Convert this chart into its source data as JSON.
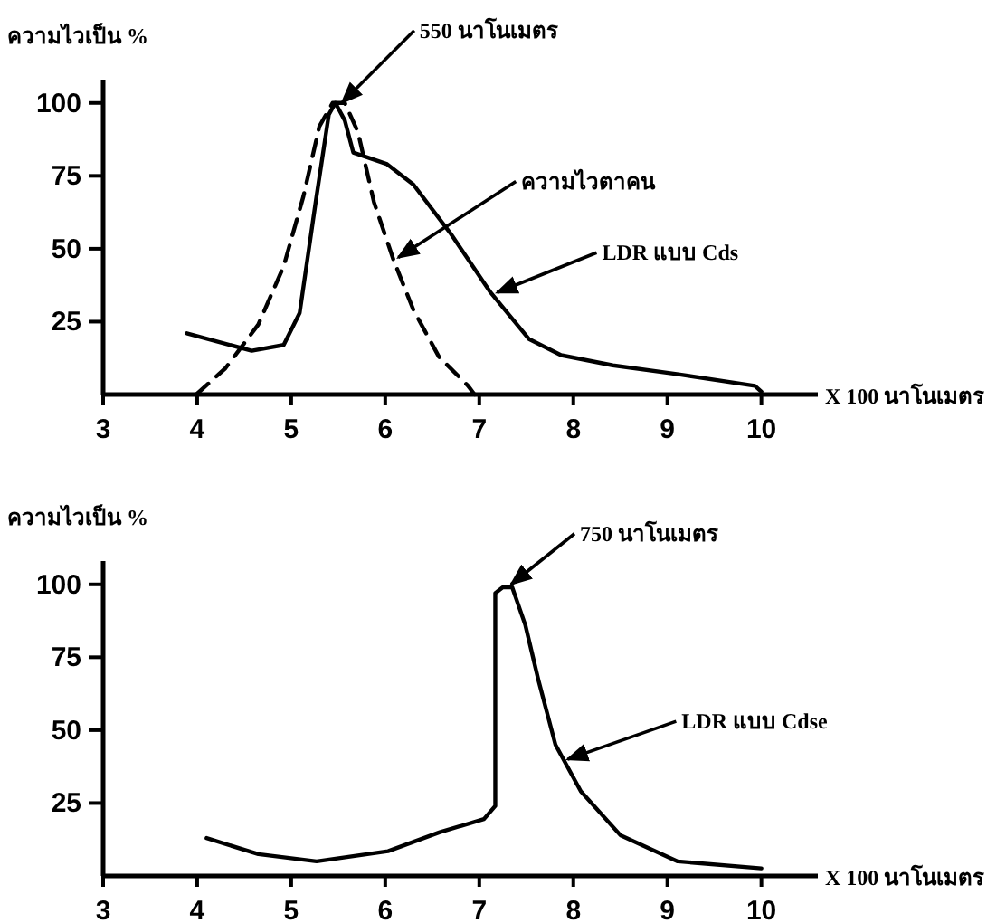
{
  "chart_data": [
    {
      "type": "line",
      "ylabel": "ความไวเป็น %",
      "xlabel": "X 100 นาโนเมตร",
      "xlim": [
        3,
        10.6
      ],
      "ylim": [
        0,
        108
      ],
      "xticks": [
        3,
        4,
        5,
        6,
        7,
        8,
        9,
        10
      ],
      "yticks": [
        25,
        50,
        75,
        100
      ],
      "grid": false,
      "marker": "none",
      "series": [
        {
          "color": "#000000",
          "line_style": "solid",
          "x": [
            3.89,
            4.58,
            4.92,
            5.09,
            5.26,
            5.4,
            5.47,
            5.57,
            5.66,
            6.02,
            6.3,
            6.7,
            7.12,
            7.53,
            7.87,
            8.42,
            9.1,
            9.93,
            10
          ],
          "values": [
            21,
            15,
            17,
            28,
            66,
            96,
            100,
            94,
            83,
            79,
            72,
            55,
            35,
            19,
            13.5,
            10,
            7,
            3,
            1
          ]
        },
        {
          "color": "#000000",
          "line_style": "dashed",
          "x": [
            3.99,
            4.3,
            4.65,
            4.92,
            5.13,
            5.3,
            5.44,
            5.57,
            5.71,
            5.88,
            6.09,
            6.3,
            6.57,
            6.88,
            6.95
          ],
          "values": [
            0,
            9,
            24,
            44,
            68,
            92,
            100,
            100,
            90,
            66,
            46,
            29,
            13,
            3,
            0
          ]
        }
      ],
      "annotations": [
        {
          "text": "550 นาโนเมตร",
          "x": 5.5,
          "y": 100
        },
        {
          "text": "ความไวตาคน",
          "x": 6.1,
          "y": 47
        },
        {
          "text": "LDR แบบ Cds",
          "x": 7.15,
          "y": 35
        }
      ]
    },
    {
      "type": "line",
      "ylabel": "ความไวเป็น %",
      "xlabel": "X 100 นาโนเมตร",
      "xlim": [
        3,
        10.6
      ],
      "ylim": [
        0,
        108
      ],
      "xticks": [
        3,
        4,
        5,
        6,
        7,
        8,
        9,
        10
      ],
      "yticks": [
        25,
        50,
        75,
        100
      ],
      "grid": false,
      "marker": "none",
      "series": [
        {
          "color": "#000000",
          "line_style": "solid",
          "x": [
            4.1,
            4.65,
            5.27,
            6.03,
            6.58,
            7.05,
            7.17,
            7.17,
            7.25,
            7.35,
            7.49,
            7.63,
            7.81,
            8.08,
            8.5,
            9.11,
            10
          ],
          "values": [
            13,
            7.5,
            5,
            8.5,
            15,
            19.5,
            24,
            97,
            99,
            99,
            86,
            67,
            45,
            29,
            14,
            5,
            2.6
          ]
        }
      ],
      "annotations": [
        {
          "text": "750 นาโนเมตร",
          "x": 7.3,
          "y": 100
        },
        {
          "text": "LDR แบบ Cdse",
          "x": 7.9,
          "y": 40
        }
      ]
    }
  ]
}
